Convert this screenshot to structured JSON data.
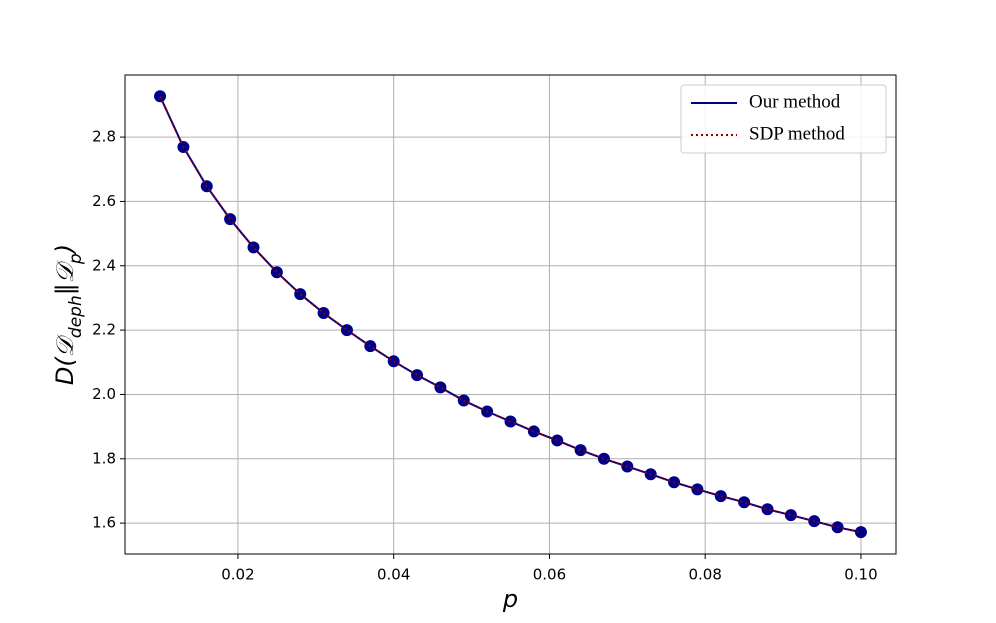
{
  "chart_data": {
    "type": "line",
    "xlabel": "p",
    "ylabel": [
      "D(𝒟",
      "deph",
      "‖𝒟",
      "p",
      ")"
    ],
    "x": [
      0.01,
      0.013,
      0.016,
      0.019,
      0.022,
      0.025,
      0.028,
      0.031,
      0.034,
      0.037,
      0.04,
      0.043,
      0.046,
      0.049,
      0.052,
      0.055,
      0.058,
      0.061,
      0.064,
      0.067,
      0.07,
      0.073,
      0.076,
      0.079,
      0.082,
      0.085,
      0.088,
      0.091,
      0.094,
      0.097,
      0.1
    ],
    "series": [
      {
        "name": "Our method",
        "color": "#00008b",
        "style": "solid",
        "marker": true,
        "values": [
          2.927,
          2.769,
          2.647,
          2.545,
          2.457,
          2.38,
          2.312,
          2.253,
          2.2,
          2.15,
          2.103,
          2.06,
          2.022,
          1.981,
          1.947,
          1.916,
          1.885,
          1.857,
          1.827,
          1.8,
          1.776,
          1.752,
          1.727,
          1.705,
          1.684,
          1.665,
          1.643,
          1.625,
          1.606,
          1.587,
          1.572
        ]
      },
      {
        "name": "SDP method",
        "color": "#8b0000",
        "style": "dotted",
        "marker": false,
        "values": [
          2.927,
          2.769,
          2.647,
          2.545,
          2.457,
          2.38,
          2.312,
          2.253,
          2.2,
          2.15,
          2.103,
          2.06,
          2.022,
          1.981,
          1.947,
          1.916,
          1.885,
          1.857,
          1.827,
          1.8,
          1.776,
          1.752,
          1.727,
          1.705,
          1.684,
          1.665,
          1.643,
          1.625,
          1.606,
          1.587,
          1.572
        ]
      }
    ],
    "xlim": [
      0.0055,
      0.1045
    ],
    "ylim": [
      1.504,
      2.993
    ],
    "xticks": [
      0.02,
      0.04,
      0.06,
      0.08,
      {
        "value": 0.1,
        "label": "0.10"
      }
    ],
    "yticks": [
      1.6,
      1.8,
      {
        "value": 2,
        "label": "2.0"
      },
      2.2,
      2.4,
      2.6,
      2.8
    ],
    "grid": true,
    "legend": "upper right"
  }
}
